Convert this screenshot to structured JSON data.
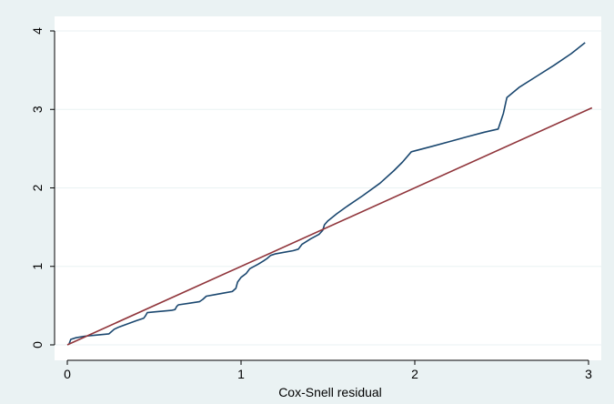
{
  "chart_data": {
    "type": "line",
    "title": "",
    "xlabel": "Cox-Snell residual",
    "ylabel": "",
    "xlim": [
      0,
      3.05
    ],
    "ylim": [
      0,
      4
    ],
    "xticks": [
      0,
      1,
      2,
      3
    ],
    "yticks": [
      0,
      1,
      2,
      3,
      4
    ],
    "grid": true,
    "legend": "none",
    "colors": {
      "background": "#eaf2f3",
      "plot_area": "#ffffff",
      "grid": "#eaf2f3",
      "series_1": "#1a476f",
      "series_2": "#90353b"
    },
    "series": [
      {
        "x": [
          0.01,
          0.02,
          0.05,
          0.1,
          0.15,
          0.24,
          0.27,
          0.3,
          0.35,
          0.4,
          0.44,
          0.45,
          0.46,
          0.5,
          0.55,
          0.6,
          0.62,
          0.63,
          0.64,
          0.7,
          0.76,
          0.78,
          0.8,
          0.85,
          0.9,
          0.95,
          0.97,
          0.98,
          1.0,
          1.03,
          1.05,
          1.1,
          1.13,
          1.15,
          1.17,
          1.2,
          1.25,
          1.3,
          1.33,
          1.35,
          1.4,
          1.45,
          1.47,
          1.48,
          1.5,
          1.55,
          1.6,
          1.7,
          1.8,
          1.88,
          1.93,
          1.98,
          2.1,
          2.2,
          2.3,
          2.4,
          2.48,
          2.51,
          2.53,
          2.6,
          2.7,
          2.8,
          2.9,
          2.98
        ],
        "values": [
          0.01,
          0.07,
          0.09,
          0.11,
          0.12,
          0.14,
          0.2,
          0.23,
          0.27,
          0.31,
          0.34,
          0.37,
          0.41,
          0.42,
          0.43,
          0.44,
          0.45,
          0.49,
          0.51,
          0.53,
          0.55,
          0.58,
          0.62,
          0.64,
          0.66,
          0.68,
          0.72,
          0.8,
          0.86,
          0.91,
          0.97,
          1.03,
          1.07,
          1.1,
          1.14,
          1.16,
          1.18,
          1.2,
          1.22,
          1.28,
          1.35,
          1.41,
          1.46,
          1.53,
          1.58,
          1.67,
          1.75,
          1.9,
          2.06,
          2.22,
          2.33,
          2.46,
          2.53,
          2.59,
          2.65,
          2.71,
          2.75,
          2.95,
          3.15,
          3.28,
          3.42,
          3.56,
          3.71,
          3.85
        ]
      },
      {
        "x": [
          0,
          3.02
        ],
        "values": [
          0,
          3.02
        ]
      }
    ]
  }
}
